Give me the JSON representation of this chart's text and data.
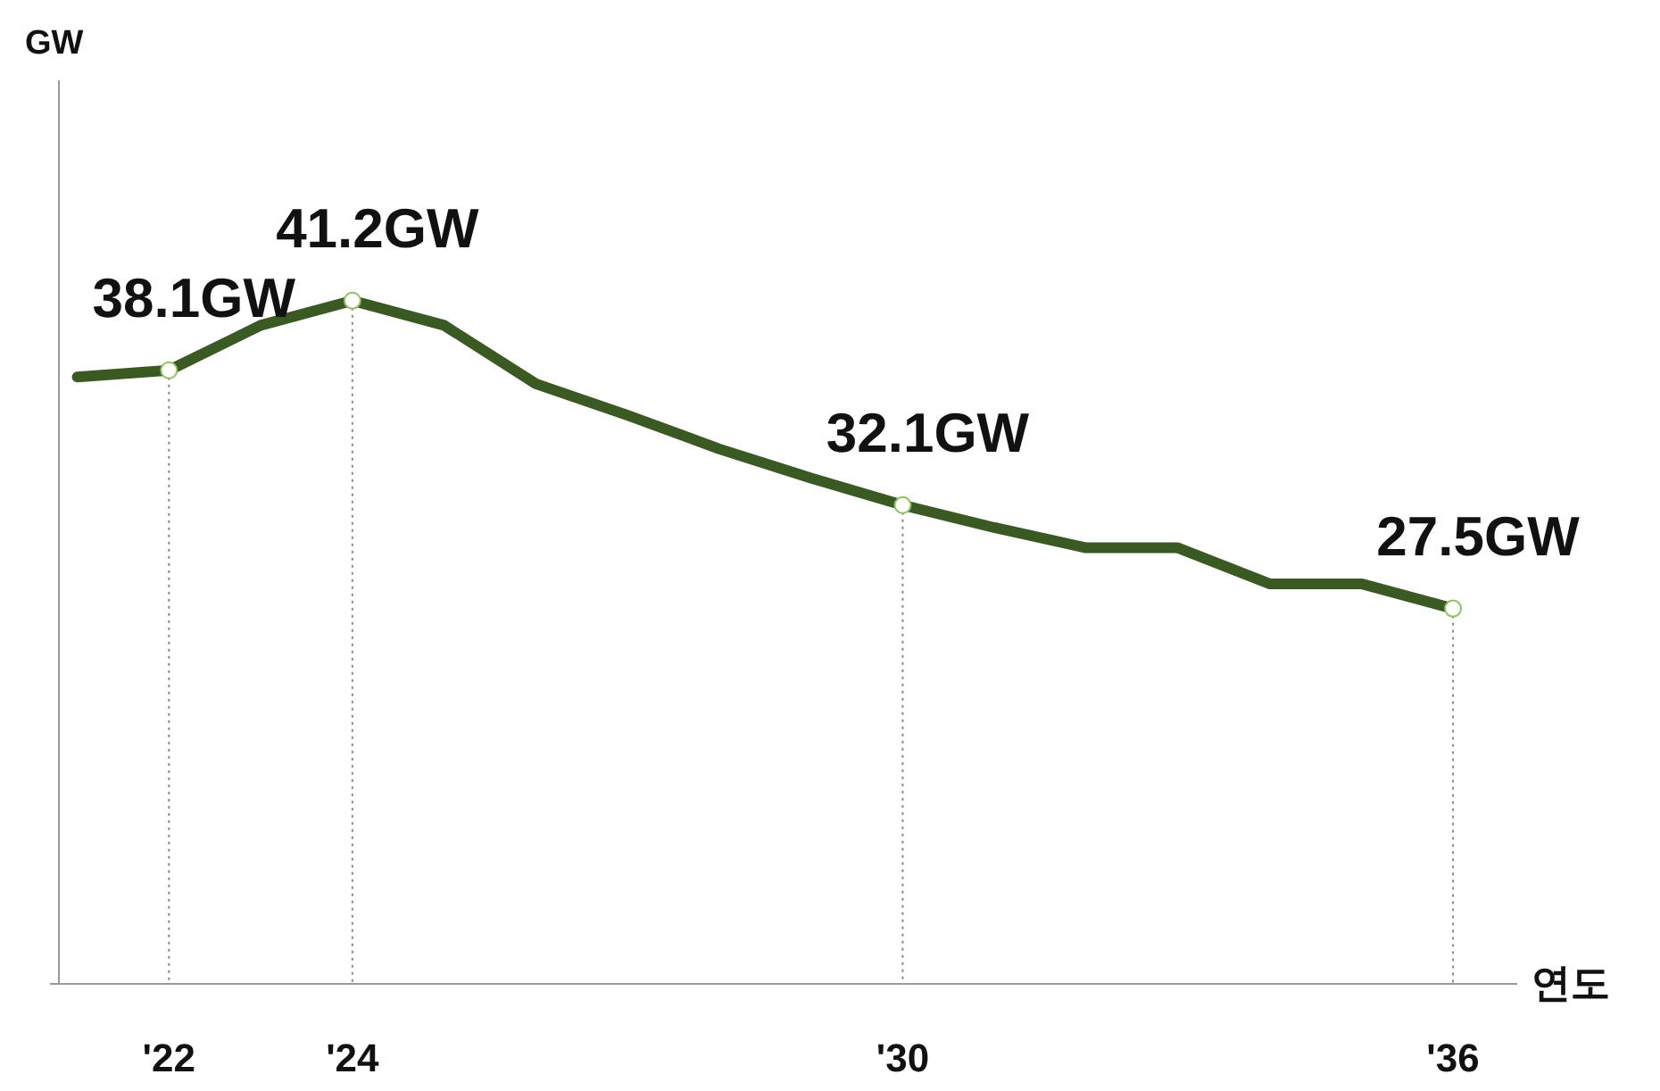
{
  "chart_data": {
    "type": "line",
    "xlabel": "연도",
    "ylabel": "GW",
    "x": [
      2021,
      2022,
      2023,
      2024,
      2025,
      2026,
      2027,
      2028,
      2029,
      2030,
      2031,
      2032,
      2033,
      2034,
      2035,
      2036
    ],
    "series": [
      {
        "color": "#3b5a23",
        "values": [
          37.8,
          38.1,
          40.1,
          41.2,
          40.1,
          37.5,
          36.1,
          34.6,
          33.3,
          32.1,
          31.1,
          30.2,
          30.2,
          28.6,
          28.6,
          27.5
        ],
        "value_labels": [
          null,
          "38.1GW",
          null,
          "41.2GW",
          null,
          null,
          null,
          null,
          null,
          "32.1GW",
          null,
          null,
          null,
          null,
          null,
          "27.5GW"
        ]
      }
    ],
    "xlim": [
      2020.8,
      2036.7
    ],
    "ylim": [
      10.8,
      51
    ],
    "xticks": [
      {
        "value": 2022,
        "label": "'22"
      },
      {
        "value": 2024,
        "label": "'24"
      },
      {
        "value": 2030,
        "label": "'30"
      },
      {
        "value": 2036,
        "label": "'36"
      }
    ],
    "tick_labels": "x",
    "line_style": "solid",
    "ref_lines": [
      {
        "axis": "x",
        "value": 2022,
        "line_style": "dotted",
        "color": "#888888"
      },
      {
        "axis": "x",
        "value": 2024,
        "line_style": "dotted",
        "color": "#888888"
      },
      {
        "axis": "x",
        "value": 2030,
        "line_style": "dotted",
        "color": "#888888"
      },
      {
        "axis": "x",
        "value": 2036,
        "line_style": "dotted",
        "color": "#888888"
      }
    ]
  }
}
